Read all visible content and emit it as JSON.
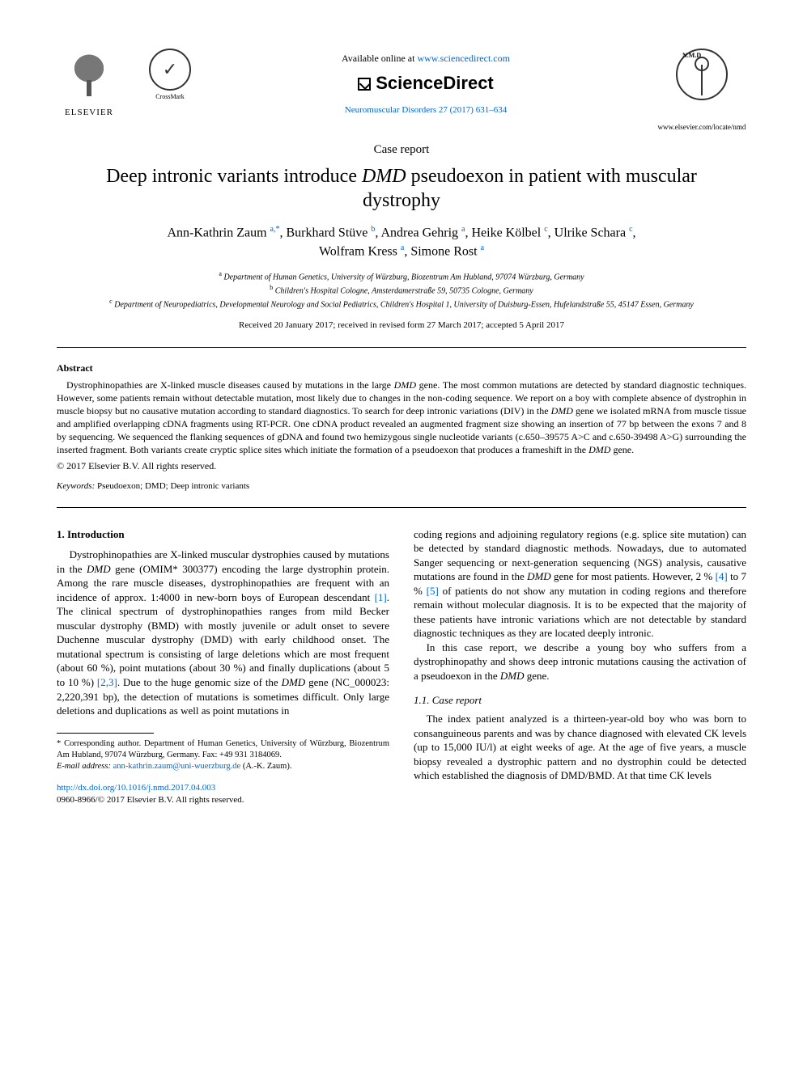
{
  "header": {
    "available_prefix": "Available online at ",
    "available_url": "www.sciencedirect.com",
    "platform": "ScienceDirect",
    "journal_ref": "Neuromuscular Disorders 27 (2017) 631–634",
    "elsevier_label": "ELSEVIER",
    "crossmark_label": "CrossMark",
    "nmd_label": "N.M.D",
    "nmd_url": "www.elsevier.com/locate/nmd"
  },
  "article": {
    "type": "Case report",
    "title_pre": "Deep intronic variants introduce ",
    "title_italic": "DMD",
    "title_post": " pseudoexon in patient with muscular dystrophy"
  },
  "authors": {
    "a1": "Ann-Kathrin Zaum",
    "a1_sup": "a,*",
    "a2": "Burkhard Stüve",
    "a2_sup": "b",
    "a3": "Andrea Gehrig",
    "a3_sup": "a",
    "a4": "Heike Kölbel",
    "a4_sup": "c",
    "a5": "Ulrike Schara",
    "a5_sup": "c",
    "a6": "Wolfram Kress",
    "a6_sup": "a",
    "a7": "Simone Rost",
    "a7_sup": "a"
  },
  "affiliations": {
    "a": "Department of Human Genetics, University of Würzburg, Biozentrum Am Hubland, 97074 Würzburg, Germany",
    "b": "Children's Hospital Cologne, Amsterdamerstraße 59, 50735 Cologne, Germany",
    "c": "Department of Neuropediatrics, Developmental Neurology and Social Pediatrics, Children's Hospital 1, University of Duisburg-Essen, Hufelandstraße 55, 45147 Essen, Germany"
  },
  "dates": "Received 20 January 2017; received in revised form 27 March 2017; accepted 5 April 2017",
  "abstract": {
    "heading": "Abstract",
    "text_parts": [
      "Dystrophinopathies are X-linked muscle diseases caused by mutations in the large ",
      "DMD",
      " gene. The most common mutations are detected by standard diagnostic techniques. However, some patients remain without detectable mutation, most likely due to changes in the non-coding sequence. We report on a boy with complete absence of dystrophin in muscle biopsy but no causative mutation according to standard diagnostics. To search for deep intronic variations (DIV) in the ",
      "DMD",
      " gene we isolated mRNA from muscle tissue and amplified overlapping cDNA fragments using RT-PCR. One cDNA product revealed an augmented fragment size showing an insertion of 77 bp between the exons 7 and 8 by sequencing. We sequenced the flanking sequences of gDNA and found two hemizygous single nucleotide variants (c.650–39575 A>C and c.650-39498 A>G) surrounding the inserted fragment. Both variants create cryptic splice sites which initiate the formation of a pseudoexon that produces a frameshift in the ",
      "DMD",
      " gene."
    ],
    "copyright": "© 2017 Elsevier B.V. All rights reserved.",
    "keywords_label": "Keywords:",
    "keywords": " Pseudoexon; DMD; Deep intronic variants"
  },
  "body": {
    "intro_heading": "1. Introduction",
    "left_p1_parts": [
      "Dystrophinopathies are X-linked muscular dystrophies caused by mutations in the ",
      "DMD",
      " gene (OMIM* 300377) encoding the large dystrophin protein. Among the rare muscle diseases, dystrophinopathies are frequent with an incidence of approx. 1:4000 in new-born boys of European descendant ",
      "[1]",
      ". The clinical spectrum of dystrophinopathies ranges from mild Becker muscular dystrophy (BMD) with mostly juvenile or adult onset to severe Duchenne muscular dystrophy (DMD) with early childhood onset. The mutational spectrum is consisting of large deletions which are most frequent (about 60 %), point mutations (about 30 %) and finally duplications (about 5 to 10 %) ",
      "[2,3]",
      ". Due to the huge genomic size of the ",
      "DMD",
      " gene (NC_000023: 2,220,391 bp), the detection of mutations is sometimes difficult. Only large deletions and duplications as well as point mutations in"
    ],
    "right_p1_parts": [
      "coding regions and adjoining regulatory regions (e.g. splice site mutation) can be detected by standard diagnostic methods. Nowadays, due to automated Sanger sequencing or next-generation sequencing (NGS) analysis, causative mutations are found in the ",
      "DMD",
      " gene for most patients. However, 2 % ",
      "[4]",
      " to 7 % ",
      "[5]",
      " of patients do not show any mutation in coding regions and therefore remain without molecular diagnosis. It is to be expected that the majority of these patients have intronic variations which are not detectable by standard diagnostic techniques as they are located deeply intronic."
    ],
    "right_p2_parts": [
      "In this case report, we describe a young boy who suffers from a dystrophinopathy and shows deep intronic mutations causing the activation of a pseudoexon in the ",
      "DMD",
      " gene."
    ],
    "case_heading": "1.1. Case report",
    "right_p3": "The index patient analyzed is a thirteen-year-old boy who was born to consanguineous parents and was by chance diagnosed with elevated CK levels (up to 15,000 IU/l) at eight weeks of age. At the age of five years, a muscle biopsy revealed a dystrophic pattern and no dystrophin could be detected which established the diagnosis of DMD/BMD. At that time CK levels"
  },
  "footnote": {
    "corr": "* Corresponding author. Department of Human Genetics, University of Würzburg, Biozentrum Am Hubland, 97074 Würzburg, Germany. Fax: +49 931 3184069.",
    "email_label": "E-mail address:",
    "email": "ann-kathrin.zaum@uni-wuerzburg.de",
    "email_suffix": " (A.-K. Zaum).",
    "doi": "http://dx.doi.org/10.1016/j.nmd.2017.04.003",
    "issn": "0960-8966/© 2017 Elsevier B.V. All rights reserved."
  },
  "colors": {
    "link": "#0066cc",
    "text": "#000000",
    "bg": "#ffffff"
  }
}
